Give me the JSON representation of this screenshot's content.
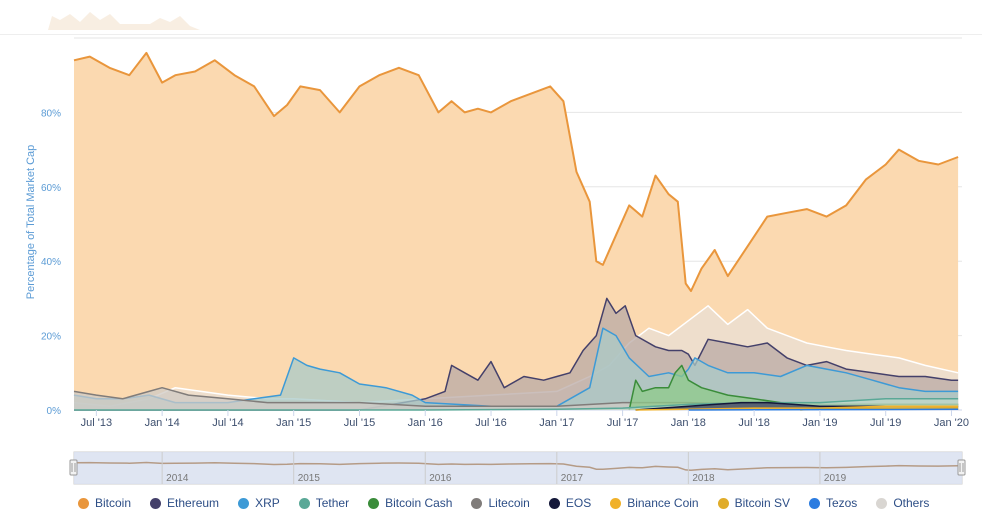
{
  "chart_data": {
    "type": "area",
    "ylabel": "Percentage of Total Market Cap",
    "ylim": [
      0,
      100
    ],
    "y_ticks": [
      "0%",
      "20%",
      "40%",
      "60%",
      "80%"
    ],
    "y_tick_values": [
      0,
      20,
      40,
      60,
      80
    ],
    "x_tick_labels": [
      "Jul '13",
      "Jan '14",
      "Jul '14",
      "Jan '15",
      "Jul '15",
      "Jan '16",
      "Jul '16",
      "Jan '17",
      "Jul '17",
      "Jan '18",
      "Jul '18",
      "Jan '19",
      "Jul '19",
      "Jan '20"
    ],
    "x_tick_dates": [
      2013.5,
      2014.0,
      2014.5,
      2015.0,
      2015.5,
      2016.0,
      2016.5,
      2017.0,
      2017.5,
      2018.0,
      2018.5,
      2019.0,
      2019.5,
      2020.0
    ],
    "xlim": [
      2013.33,
      2020.08
    ],
    "navigator_labels": [
      "2014",
      "2015",
      "2016",
      "2017",
      "2018",
      "2019"
    ],
    "navigator_label_dates": [
      2014.0,
      2015.0,
      2016.0,
      2017.0,
      2018.0,
      2019.0
    ],
    "grid": true,
    "legend_position": "bottom",
    "series": [
      {
        "name": "Bitcoin",
        "color": "#e9963c",
        "fill": "#fbd9b0",
        "x": [
          2013.33,
          2013.45,
          2013.6,
          2013.75,
          2013.88,
          2014.0,
          2014.1,
          2014.25,
          2014.4,
          2014.55,
          2014.7,
          2014.85,
          2014.95,
          2015.05,
          2015.2,
          2015.35,
          2015.5,
          2015.65,
          2015.8,
          2015.95,
          2016.1,
          2016.2,
          2016.3,
          2016.4,
          2016.5,
          2016.65,
          2016.8,
          2016.95,
          2017.05,
          2017.15,
          2017.25,
          2017.3,
          2017.35,
          2017.45,
          2017.55,
          2017.65,
          2017.75,
          2017.85,
          2017.92,
          2017.98,
          2018.02,
          2018.1,
          2018.2,
          2018.3,
          2018.45,
          2018.6,
          2018.75,
          2018.9,
          2019.05,
          2019.2,
          2019.35,
          2019.5,
          2019.6,
          2019.75,
          2019.9,
          2020.05
        ],
        "y": [
          94,
          95,
          92,
          90,
          96,
          88,
          90,
          91,
          94,
          90,
          87,
          79,
          82,
          87,
          86,
          80,
          87,
          90,
          92,
          90,
          80,
          83,
          80,
          81,
          80,
          83,
          85,
          87,
          83,
          64,
          56,
          40,
          39,
          47,
          55,
          52,
          63,
          58,
          56,
          34,
          32,
          38,
          43,
          36,
          44,
          52,
          53,
          54,
          52,
          55,
          62,
          66,
          70,
          67,
          66,
          68
        ]
      },
      {
        "name": "Ethereum",
        "color": "#44406a",
        "fill": "#b9a9a6",
        "x": [
          2013.33,
          2015.5,
          2016.0,
          2016.15,
          2016.2,
          2016.3,
          2016.4,
          2016.5,
          2016.6,
          2016.75,
          2016.9,
          2017.0,
          2017.1,
          2017.2,
          2017.3,
          2017.38,
          2017.45,
          2017.52,
          2017.6,
          2017.75,
          2017.85,
          2017.95,
          2018.0,
          2018.05,
          2018.15,
          2018.3,
          2018.45,
          2018.6,
          2018.75,
          2018.9,
          2019.05,
          2019.2,
          2019.4,
          2019.6,
          2019.8,
          2020.0,
          2020.05
        ],
        "y": [
          0,
          0,
          3,
          5,
          12,
          10,
          8,
          13,
          6,
          9,
          8,
          9,
          10,
          16,
          20,
          30,
          26,
          28,
          20,
          17,
          16,
          16,
          15,
          12,
          19,
          18,
          17,
          18,
          14,
          12,
          13,
          11,
          10,
          9,
          9,
          8,
          8
        ]
      },
      {
        "name": "XRP",
        "color": "#3d9ad6",
        "fill": "#a9c9c8",
        "x": [
          2013.33,
          2013.5,
          2013.7,
          2013.9,
          2014.1,
          2014.3,
          2014.5,
          2014.7,
          2014.9,
          2015.0,
          2015.1,
          2015.2,
          2015.35,
          2015.5,
          2015.7,
          2015.9,
          2016.0,
          2016.5,
          2017.0,
          2017.25,
          2017.35,
          2017.45,
          2017.55,
          2017.7,
          2017.85,
          2017.95,
          2018.0,
          2018.05,
          2018.15,
          2018.3,
          2018.5,
          2018.7,
          2018.9,
          2019.05,
          2019.2,
          2019.4,
          2019.6,
          2019.8,
          2020.05
        ],
        "y": [
          4,
          3,
          3,
          4,
          2,
          2,
          2,
          3,
          4,
          14,
          12,
          11,
          10,
          7,
          6,
          4,
          2,
          1,
          1,
          6,
          22,
          20,
          14,
          9,
          10,
          9,
          11,
          14,
          12,
          10,
          10,
          9,
          12,
          11,
          10,
          8,
          6,
          5,
          5
        ]
      },
      {
        "name": "Tether",
        "color": "#5aa897",
        "fill": "#c2d8c9",
        "x": [
          2013.33,
          2015.0,
          2016.0,
          2017.0,
          2017.5,
          2018.0,
          2018.5,
          2019.0,
          2019.5,
          2020.05
        ],
        "y": [
          0,
          0,
          0,
          0.2,
          0.5,
          1.5,
          2,
          2,
          3,
          3
        ]
      },
      {
        "name": "Bitcoin Cash",
        "color": "#3a8c3a",
        "fill": "#8fca8a",
        "x": [
          2017.55,
          2017.6,
          2017.65,
          2017.75,
          2017.85,
          2017.9,
          2017.95,
          2018.0,
          2018.1,
          2018.3,
          2018.5,
          2018.7,
          2018.9,
          2019.1,
          2019.5,
          2020.05
        ],
        "y": [
          0,
          8,
          5,
          6,
          6,
          10,
          12,
          8,
          6,
          4,
          3,
          2,
          1.5,
          1.5,
          1.5,
          1.5
        ]
      },
      {
        "name": "Litecoin",
        "color": "#807c7a",
        "fill": "#cfc9c4",
        "x": [
          2013.33,
          2013.5,
          2013.7,
          2013.9,
          2014.0,
          2014.2,
          2014.5,
          2014.8,
          2015.0,
          2015.5,
          2016.0,
          2016.5,
          2017.0,
          2017.5,
          2018.0,
          2018.5,
          2019.0,
          2019.5,
          2020.05
        ],
        "y": [
          5,
          4,
          3,
          5,
          6,
          4,
          3,
          2,
          2,
          2,
          1,
          1,
          1,
          2,
          2,
          1.5,
          1.5,
          1.5,
          1.5
        ]
      },
      {
        "name": "EOS",
        "color": "#14183a",
        "fill": "#3a3e5a",
        "x": [
          2017.6,
          2017.8,
          2018.0,
          2018.2,
          2018.4,
          2018.6,
          2018.8,
          2019.0,
          2019.3,
          2019.6,
          2020.05
        ],
        "y": [
          0,
          0.5,
          1,
          1.5,
          2,
          2,
          1.5,
          1,
          1,
          1,
          1
        ]
      },
      {
        "name": "Binance Coin",
        "color": "#f0b12a",
        "fill": "#f6d884",
        "x": [
          2017.6,
          2018.0,
          2018.5,
          2019.0,
          2019.5,
          2020.05
        ],
        "y": [
          0,
          0.2,
          0.5,
          0.5,
          1,
          1
        ]
      },
      {
        "name": "Bitcoin SV",
        "color": "#e0ac2a",
        "fill": "#f1d58c",
        "x": [
          2018.85,
          2019.0,
          2019.5,
          2020.05
        ],
        "y": [
          0,
          0.4,
          0.5,
          0.6
        ]
      },
      {
        "name": "Tezos",
        "color": "#2c7ce0",
        "fill": "#9fc2ee",
        "x": [
          2018.0,
          2019.0,
          2020.05
        ],
        "y": [
          0,
          0.1,
          0.2
        ]
      },
      {
        "name": "Others",
        "color": "#d9d6d2",
        "fill": "#e9dfd5",
        "x": [
          2013.33,
          2013.6,
          2013.9,
          2014.1,
          2014.5,
          2014.8,
          2015.0,
          2015.5,
          2016.0,
          2016.5,
          2017.0,
          2017.25,
          2017.4,
          2017.55,
          2017.7,
          2017.85,
          2018.0,
          2018.15,
          2018.3,
          2018.45,
          2018.6,
          2018.75,
          2018.9,
          2019.05,
          2019.2,
          2019.4,
          2019.6,
          2019.8,
          2020.05
        ],
        "y": [
          2,
          1,
          3,
          6,
          4,
          3,
          3,
          2,
          3,
          4,
          5,
          9,
          12,
          18,
          22,
          20,
          24,
          28,
          23,
          27,
          22,
          20,
          18,
          17,
          16,
          15,
          14,
          12,
          10
        ]
      }
    ]
  }
}
